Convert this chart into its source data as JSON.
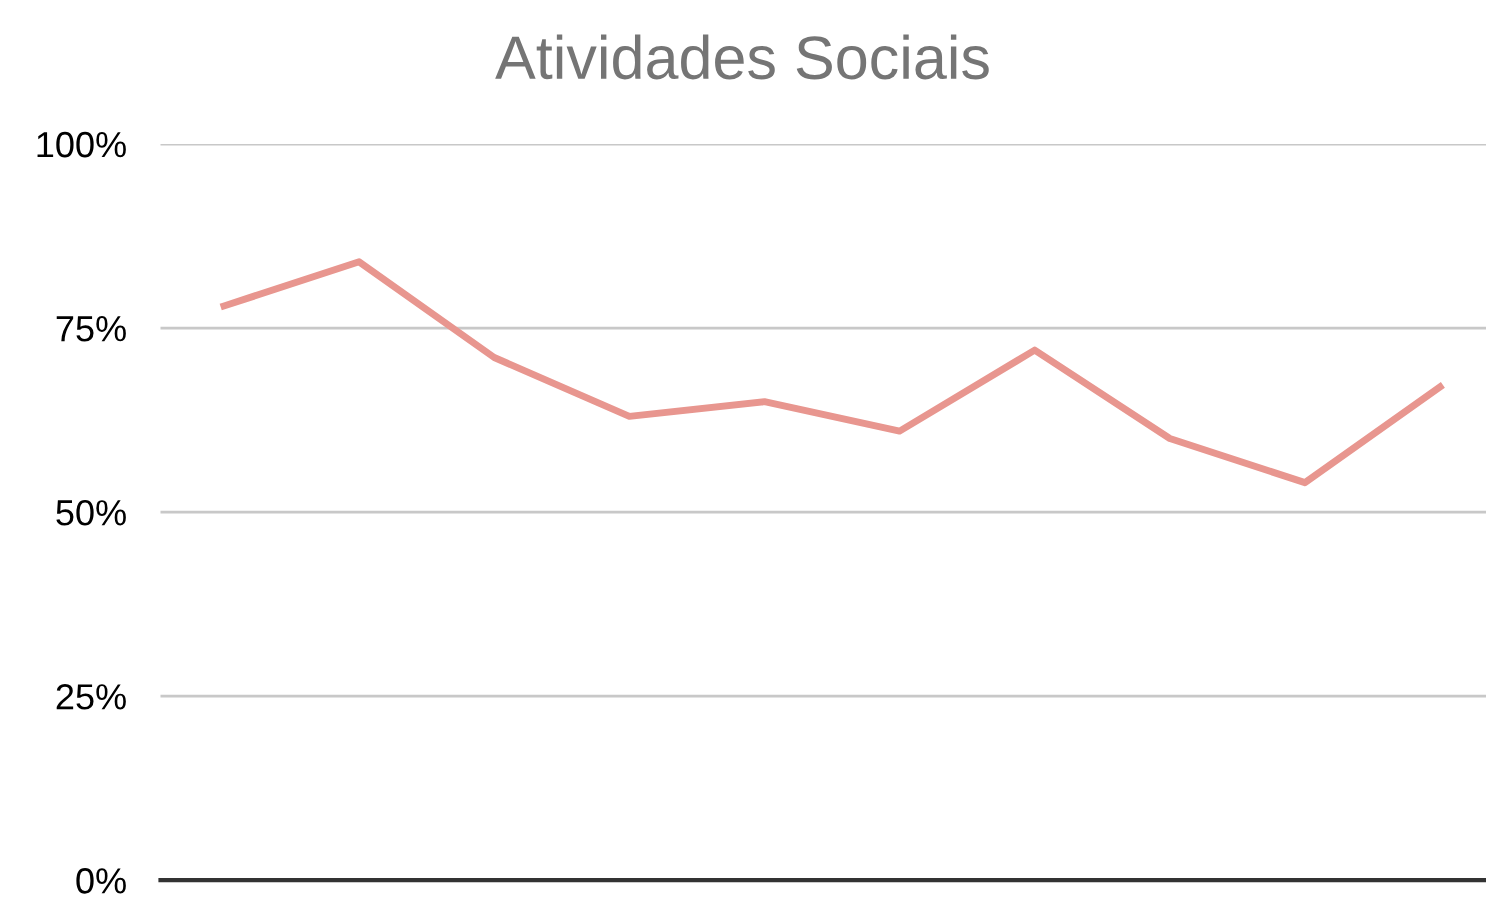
{
  "chart_data": {
    "type": "line",
    "title": "Atividades Sociais",
    "categories": [
      null,
      null,
      null,
      null,
      null,
      null,
      null,
      null,
      null,
      null
    ],
    "series": [
      {
        "color": "#e8968f",
        "values": [
          78,
          84,
          71,
          63,
          65,
          61,
          72,
          60,
          54,
          67
        ]
      }
    ],
    "ylim": [
      0,
      100
    ],
    "yticks": [
      {
        "value": 0,
        "label": "0%"
      },
      {
        "value": 25,
        "label": "25%"
      },
      {
        "value": 50,
        "label": "50%"
      },
      {
        "value": 75,
        "label": "75%"
      },
      {
        "value": 100,
        "label": "100%"
      }
    ],
    "grid": "y",
    "legend": false,
    "tick_labels": "y",
    "marker": "none",
    "line_style": "solid"
  }
}
